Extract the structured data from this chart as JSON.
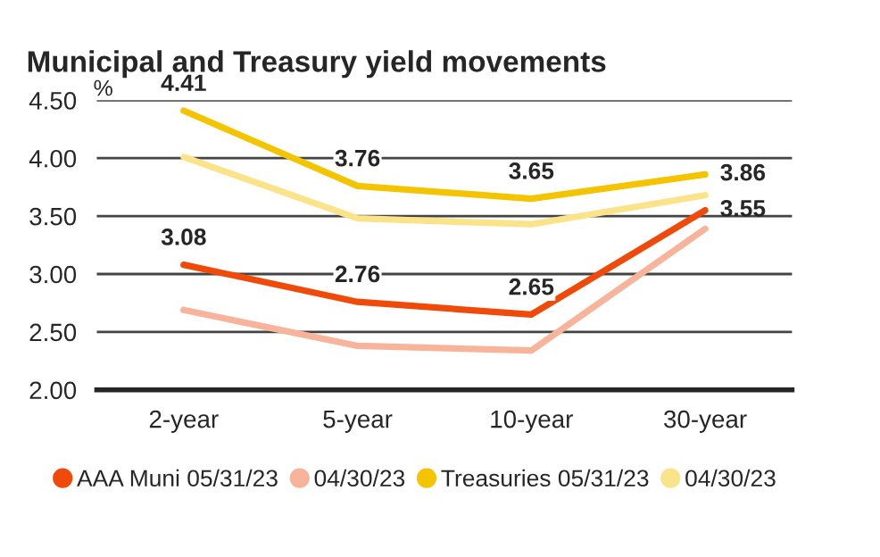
{
  "chart_data": {
    "type": "line",
    "title": "Municipal and Treasury yield movements",
    "ylabel": "%",
    "categories": [
      "2-year",
      "5-year",
      "10-year",
      "30-year"
    ],
    "series": [
      {
        "name": "AAA Muni 05/31/23",
        "color": "#f04a0a",
        "values": [
          3.08,
          2.76,
          2.65,
          3.55
        ],
        "value_labels": [
          "3.08",
          "2.76",
          "2.65",
          "3.55"
        ]
      },
      {
        "name": "04/30/23",
        "color": "#f7b49a",
        "values": [
          2.69,
          2.38,
          2.34,
          3.39
        ]
      },
      {
        "name": "Treasuries 05/31/23",
        "color": "#f5c400",
        "values": [
          4.41,
          3.76,
          3.65,
          3.86
        ],
        "value_labels": [
          "4.41",
          "3.76",
          "3.65",
          "3.86"
        ]
      },
      {
        "name": "04/30/23",
        "color": "#fbe38a",
        "values": [
          4.01,
          3.48,
          3.43,
          3.68
        ]
      }
    ],
    "ylim": [
      2.0,
      4.5
    ],
    "yticks": [
      {
        "value": 2.0,
        "label": "2.00"
      },
      {
        "value": 2.5,
        "label": "2.50"
      },
      {
        "value": 3.0,
        "label": "3.00"
      },
      {
        "value": 3.5,
        "label": "3.50"
      },
      {
        "value": 4.0,
        "label": "4.00"
      },
      {
        "value": 4.5,
        "label": "4.50"
      }
    ],
    "grid": "y",
    "legend": "bottom",
    "marker": "none",
    "line_style": "solid"
  }
}
